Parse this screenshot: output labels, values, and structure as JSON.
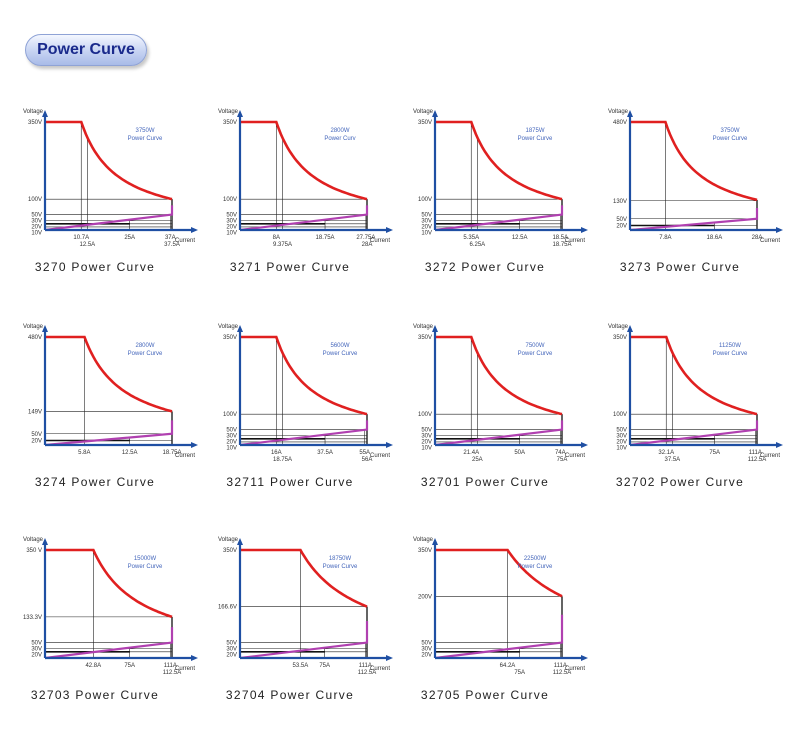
{
  "header": {
    "title": "Power Curve"
  },
  "colors": {
    "axis": "#1f4fa3",
    "curve": "#e02020",
    "low": "#b040b0",
    "grid": "#222222",
    "power_label": "#4466bb"
  },
  "chart_data": [
    {
      "type": "line",
      "title": "3270 Power Curve",
      "power": "3750W",
      "power_sub": "Power Curve",
      "ylabel": "Voltage",
      "xlabel": "Current",
      "v_ticks": [
        "350V",
        "100V",
        "50V",
        "30V",
        "20V",
        "10V"
      ],
      "i_ticks": [
        "10.7A",
        "12.5A",
        "25A",
        "37A",
        "37.5A"
      ]
    },
    {
      "type": "line",
      "title": "3271 Power Curve",
      "power": "2800W",
      "power_sub": "Power Curv",
      "ylabel": "Voltage",
      "xlabel": "Current",
      "v_ticks": [
        "350V",
        "100V",
        "50V",
        "30V",
        "20V",
        "10V"
      ],
      "i_ticks": [
        "8A",
        "9.375A",
        "18.75A",
        "27.75A",
        "28A"
      ]
    },
    {
      "type": "line",
      "title": "3272 Power Curve",
      "power": "1875W",
      "power_sub": "Power Curve",
      "ylabel": "Voltage",
      "xlabel": "Current",
      "v_ticks": [
        "350V",
        "100V",
        "50V",
        "30V",
        "20V",
        "10V"
      ],
      "i_ticks": [
        "5.35A",
        "6.25A",
        "12.5A",
        "18.5A",
        "18.75A"
      ]
    },
    {
      "type": "line",
      "title": "3273 Power Curve",
      "power": "3750W",
      "power_sub": "Power Curve",
      "ylabel": "Voltage",
      "xlabel": "Current",
      "v_ticks": [
        "480V",
        "130V",
        "50V",
        "20V"
      ],
      "i_ticks": [
        "7.8A",
        "18.6A",
        "28A"
      ]
    },
    {
      "type": "line",
      "title": "3274 Power Curve",
      "power": "2800W",
      "power_sub": "Power Curve",
      "ylabel": "Voltage",
      "xlabel": "Current",
      "v_ticks": [
        "480V",
        "149V",
        "50V",
        "20V"
      ],
      "i_ticks": [
        "5.8A",
        "12.5A",
        "18.75A"
      ]
    },
    {
      "type": "line",
      "title": "32711 Power Curve",
      "power": "5600W",
      "power_sub": "Power Curve",
      "ylabel": "Voltage",
      "xlabel": "Current",
      "v_ticks": [
        "350V",
        "100V",
        "50V",
        "30V",
        "20V",
        "10V"
      ],
      "i_ticks": [
        "16A",
        "18.75A",
        "37.5A",
        "55A",
        "56A"
      ]
    },
    {
      "type": "line",
      "title": "32701 Power Curve",
      "power": "7500W",
      "power_sub": "Power Curve",
      "ylabel": "Voltage",
      "xlabel": "Current",
      "v_ticks": [
        "350V",
        "100V",
        "50V",
        "30V",
        "20V",
        "10V"
      ],
      "i_ticks": [
        "21.4A",
        "25A",
        "50A",
        "74A",
        "75A"
      ]
    },
    {
      "type": "line",
      "title": "32702 Power Curve",
      "power": "11250W",
      "power_sub": "Power Curve",
      "ylabel": "Voltage",
      "xlabel": "Current",
      "v_ticks": [
        "350V",
        "100V",
        "50V",
        "30V",
        "20V",
        "10V"
      ],
      "i_ticks": [
        "32.1A",
        "37.5A",
        "75A",
        "111A",
        "112.5A"
      ]
    },
    {
      "type": "line",
      "title": "32703 Power Curve",
      "power": "15000W",
      "power_sub": "Power Curve",
      "ylabel": "Voltage",
      "xlabel": "Current",
      "v_ticks": [
        "350 V",
        "133.3V",
        "50V",
        "30V",
        "20V"
      ],
      "i_ticks": [
        "42.8A",
        "75A",
        "111A",
        "112.5A"
      ]
    },
    {
      "type": "line",
      "title": "32704 Power Curve",
      "power": "18750W",
      "power_sub": "Power Curve",
      "ylabel": "Voltage",
      "xlabel": "Current",
      "v_ticks": [
        "350V",
        "166.6V",
        "50V",
        "30V",
        "20V"
      ],
      "i_ticks": [
        "53.5A",
        "75A",
        "111A",
        "112.5A"
      ]
    },
    {
      "type": "line",
      "title": "32705 Power Curve",
      "power": "22500W",
      "power_sub": "Power Curve",
      "ylabel": "Voltage",
      "xlabel": "Current",
      "v_ticks": [
        "350V",
        "200V",
        "50V",
        "30V",
        "20V"
      ],
      "i_ticks": [
        "64.2A",
        "75A",
        "111A",
        "112.5A"
      ]
    }
  ]
}
